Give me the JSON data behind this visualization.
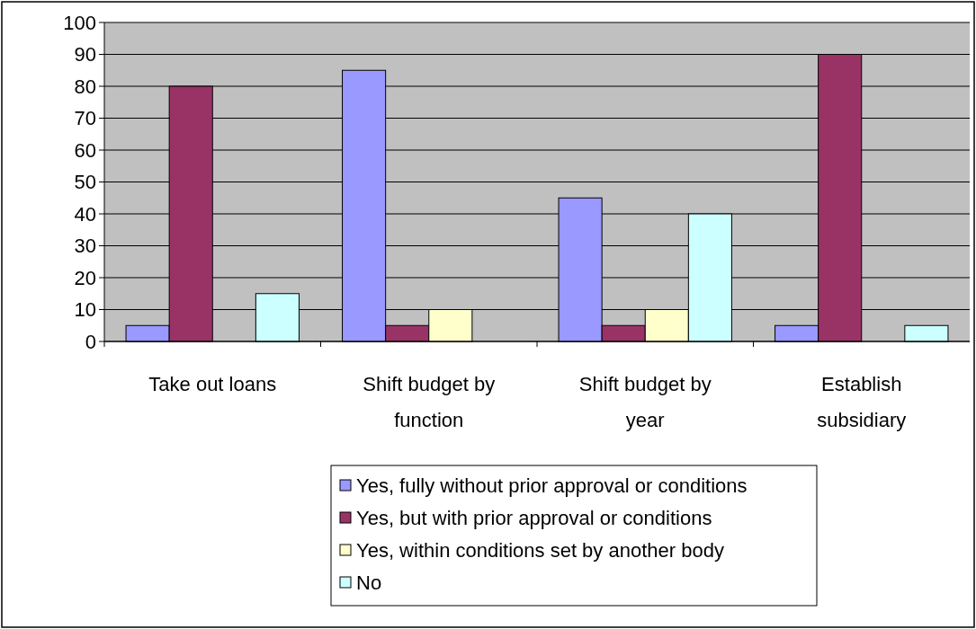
{
  "chart_data": {
    "type": "bar",
    "categories": [
      "Take out loans",
      "Shift budget by function",
      "Shift budget by year",
      "Establish subsidiary"
    ],
    "series": [
      {
        "name": "Yes, fully without prior approval or conditions",
        "color": "#9999ff",
        "values": [
          5,
          85,
          45,
          5
        ]
      },
      {
        "name": "Yes, but with prior approval or conditions",
        "color": "#993366",
        "values": [
          80,
          5,
          5,
          90
        ]
      },
      {
        "name": "Yes, within conditions set by another body",
        "color": "#ffffcc",
        "values": [
          0,
          10,
          10,
          0
        ]
      },
      {
        "name": "No",
        "color": "#ccffff",
        "values": [
          15,
          0,
          40,
          5
        ]
      }
    ],
    "ylim": [
      0,
      100
    ],
    "yticks": [
      0,
      10,
      20,
      30,
      40,
      50,
      60,
      70,
      80,
      90,
      100
    ],
    "grid": "y",
    "legend": "bottom"
  }
}
